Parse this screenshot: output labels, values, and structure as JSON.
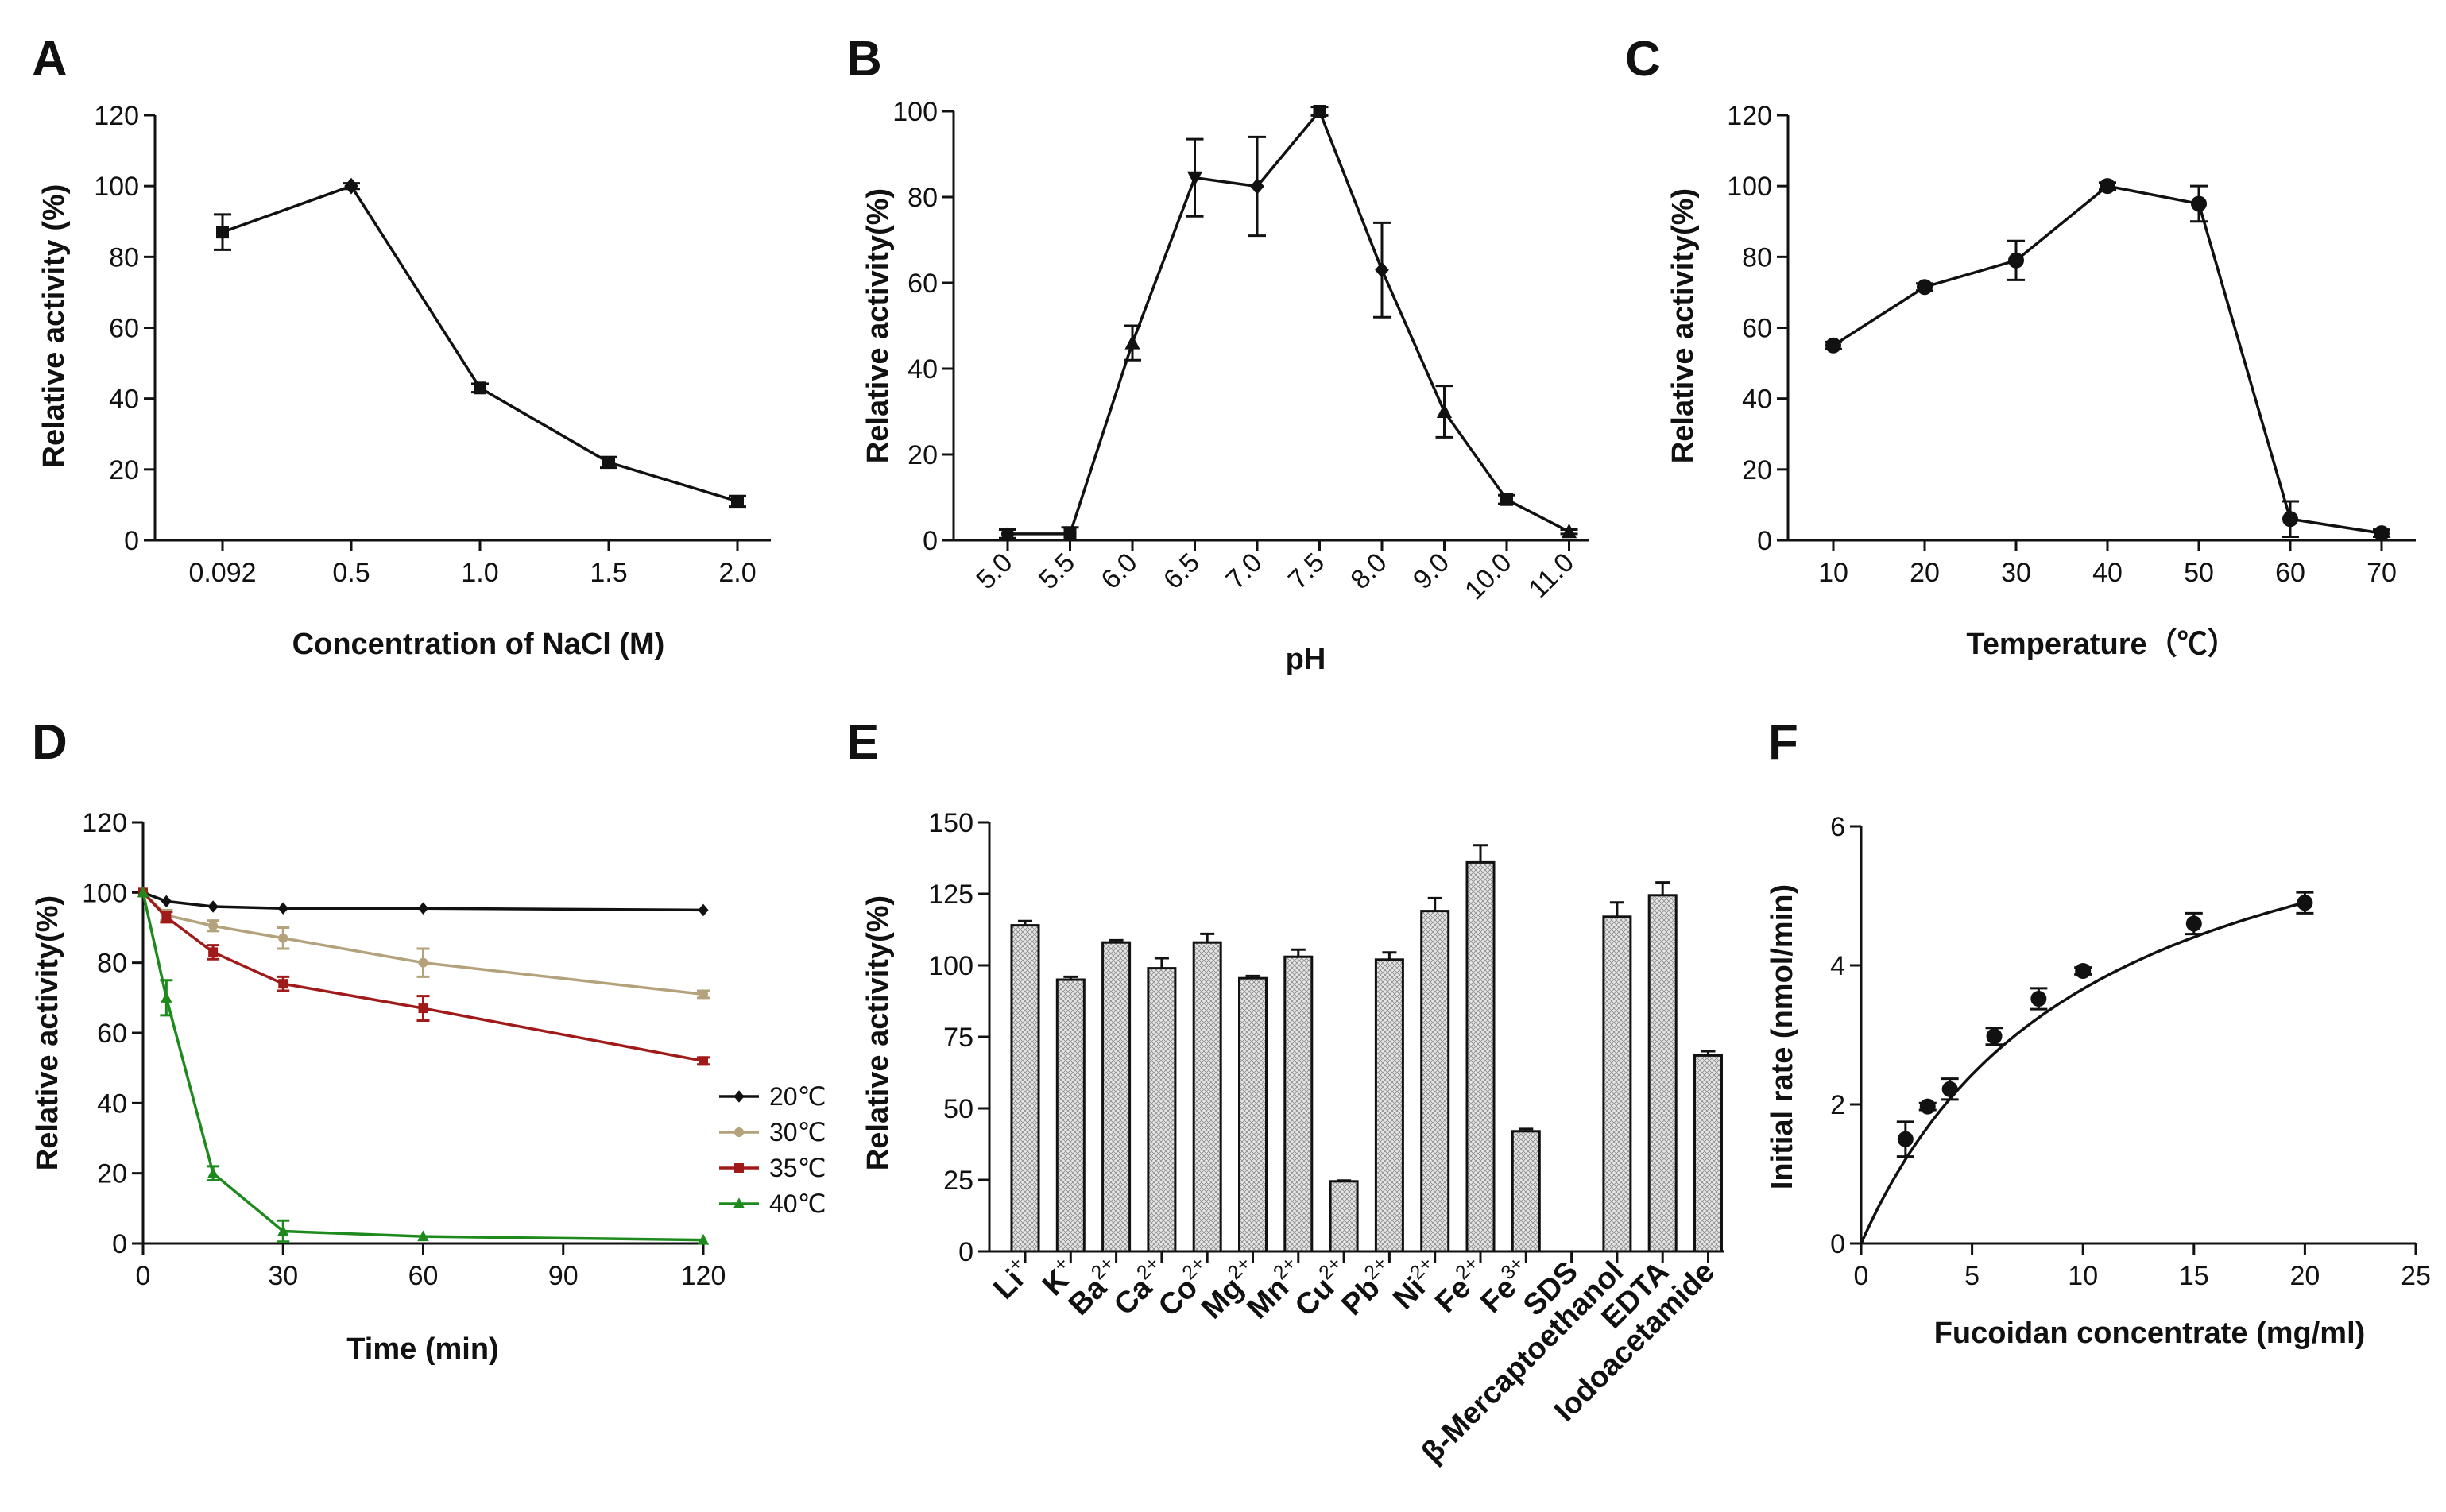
{
  "figure": {
    "panels": [
      {
        "id": "A",
        "letter": "A",
        "xlabel": "Concentration of NaCl (M)",
        "ylabel": "Relative activity (%)"
      },
      {
        "id": "B",
        "letter": "B",
        "xlabel": "pH",
        "ylabel": "Relative activity(%)"
      },
      {
        "id": "C",
        "letter": "C",
        "xlabel": "Temperature（℃）",
        "ylabel": "Relative activity(%)"
      },
      {
        "id": "D",
        "letter": "D",
        "xlabel": "Time (min)",
        "ylabel": "Relative activity(%)"
      },
      {
        "id": "E",
        "letter": "E",
        "xlabel": "",
        "ylabel": "Relative activity(%)"
      },
      {
        "id": "F",
        "letter": "F",
        "xlabel": "Fucoidan concentrate (mg/ml)",
        "ylabel": "Initial rate (nmol/min)"
      }
    ]
  },
  "chart_data": [
    {
      "panel": "A",
      "type": "line",
      "title": "",
      "xlabel": "Concentration of NaCl (M)",
      "ylabel": "Relative activity (%)",
      "categories": [
        "0.092",
        "0.5",
        "1.0",
        "1.5",
        "2.0"
      ],
      "values": [
        87,
        100,
        43,
        22,
        11
      ],
      "errors": [
        5,
        0.8,
        1.2,
        1.5,
        1.5
      ],
      "ylim": [
        0,
        120
      ],
      "yticks": [
        0,
        20,
        40,
        60,
        80,
        100,
        120
      ]
    },
    {
      "panel": "B",
      "type": "line",
      "title": "",
      "xlabel": "pH",
      "ylabel": "Relative activity(%)",
      "categories": [
        "5.0",
        "5.5",
        "6.0",
        "6.5",
        "7.0",
        "7.5",
        "8.0",
        "9.0",
        "10.0",
        "11.0"
      ],
      "values": [
        1.5,
        1.5,
        46,
        84.5,
        82.5,
        100,
        63,
        30,
        9.5,
        2
      ],
      "errors": [
        1,
        1.5,
        4,
        9,
        11.5,
        1,
        11,
        6,
        1,
        0.5
      ],
      "ylim": [
        0,
        100
      ],
      "yticks": [
        0,
        20,
        40,
        60,
        80,
        100
      ]
    },
    {
      "panel": "C",
      "type": "line",
      "title": "",
      "xlabel": "Temperature（℃）",
      "ylabel": "Relative activity(%)",
      "x": [
        10,
        20,
        30,
        40,
        50,
        60,
        70
      ],
      "values": [
        55,
        71.5,
        79,
        100,
        95,
        6,
        2
      ],
      "errors": [
        1,
        1,
        5.5,
        1,
        5,
        5,
        1
      ],
      "xlim": [
        5,
        75
      ],
      "xticks": [
        10,
        20,
        30,
        40,
        50,
        60,
        70
      ],
      "ylim": [
        0,
        120
      ],
      "yticks": [
        0,
        20,
        40,
        60,
        80,
        100,
        120
      ]
    },
    {
      "panel": "D",
      "type": "line",
      "title": "",
      "xlabel": "Time (min)",
      "ylabel": "Relative activity(%)",
      "x": [
        0,
        5,
        15,
        30,
        60,
        120
      ],
      "series": [
        {
          "name": "20℃",
          "color": "#111111",
          "values": [
            100,
            97.5,
            96,
            95.5,
            95.5,
            95
          ],
          "errors": [
            0,
            0.5,
            0.5,
            0.5,
            0.5,
            0.5
          ]
        },
        {
          "name": "30℃",
          "color": "#b3a27c",
          "values": [
            100,
            93.5,
            90.5,
            87,
            80,
            71
          ],
          "errors": [
            0,
            1.5,
            1.5,
            3,
            4,
            1
          ]
        },
        {
          "name": "35℃",
          "color": "#a01a1a",
          "values": [
            100,
            93,
            83,
            74,
            67,
            52
          ],
          "errors": [
            0,
            1.5,
            2,
            2,
            3.5,
            1
          ]
        },
        {
          "name": "40℃",
          "color": "#1e8a1e",
          "values": [
            100,
            70,
            20,
            3.5,
            2,
            1
          ],
          "errors": [
            0,
            5,
            2,
            3,
            0.5,
            0.5
          ]
        }
      ],
      "xlim": [
        0,
        120
      ],
      "xticks": [
        0,
        30,
        60,
        90,
        120
      ],
      "ylim": [
        0,
        120
      ],
      "yticks": [
        0,
        20,
        40,
        60,
        80,
        100,
        120
      ],
      "legend": "right"
    },
    {
      "panel": "E",
      "type": "bar",
      "title": "",
      "xlabel": "",
      "ylabel": "Relative activity(%)",
      "categories": [
        {
          "base": "Li",
          "sup": "+"
        },
        {
          "base": "K",
          "sup": "+"
        },
        {
          "base": "Ba",
          "sup": "2+"
        },
        {
          "base": "Ca",
          "sup": "2+"
        },
        {
          "base": "Co",
          "sup": "2+"
        },
        {
          "base": "Mg",
          "sup": "2+"
        },
        {
          "base": "Mn",
          "sup": "2+"
        },
        {
          "base": "Cu",
          "sup": "2+"
        },
        {
          "base": "Pb",
          "sup": "2+"
        },
        {
          "base": "Ni",
          "sup": "2+"
        },
        {
          "base": "Fe",
          "sup": "2+"
        },
        {
          "base": "Fe",
          "sup": "3+"
        },
        {
          "base": "SDS",
          "sup": ""
        },
        {
          "base": "β-Mercaptoethanol",
          "sup": ""
        },
        {
          "base": "EDTA",
          "sup": ""
        },
        {
          "base": "Iodoacetamide",
          "sup": ""
        }
      ],
      "values": [
        114,
        95,
        108,
        99,
        108,
        95.5,
        103,
        24.5,
        102,
        119,
        136,
        42,
        0,
        117,
        124.5,
        68.5
      ],
      "errors": [
        1.5,
        1,
        0.8,
        3.5,
        3,
        0.8,
        2.5,
        0.3,
        2.5,
        4.5,
        6,
        0.8,
        0,
        5,
        4.5,
        1.5
      ],
      "ylim": [
        0,
        150
      ],
      "yticks": [
        0,
        25,
        50,
        75,
        100,
        125,
        150
      ]
    },
    {
      "panel": "F",
      "type": "scatter",
      "title": "",
      "xlabel": "Fucoidan concentrate (mg/ml)",
      "ylabel": "Initial rate (nmol/min)",
      "x": [
        2,
        3,
        4,
        6,
        8,
        10,
        15,
        20
      ],
      "values": [
        1.5,
        1.97,
        2.22,
        2.98,
        3.52,
        3.92,
        4.6,
        4.9
      ],
      "errors": [
        0.25,
        0.05,
        0.15,
        0.12,
        0.15,
        0.05,
        0.15,
        0.15
      ],
      "fit": {
        "vmax": 7.43,
        "km": 10.3
      },
      "xlim": [
        0,
        25
      ],
      "xticks": [
        0,
        5,
        10,
        15,
        20,
        25
      ],
      "ylim": [
        0,
        6
      ],
      "yticks": [
        0,
        2,
        4,
        6
      ]
    }
  ]
}
